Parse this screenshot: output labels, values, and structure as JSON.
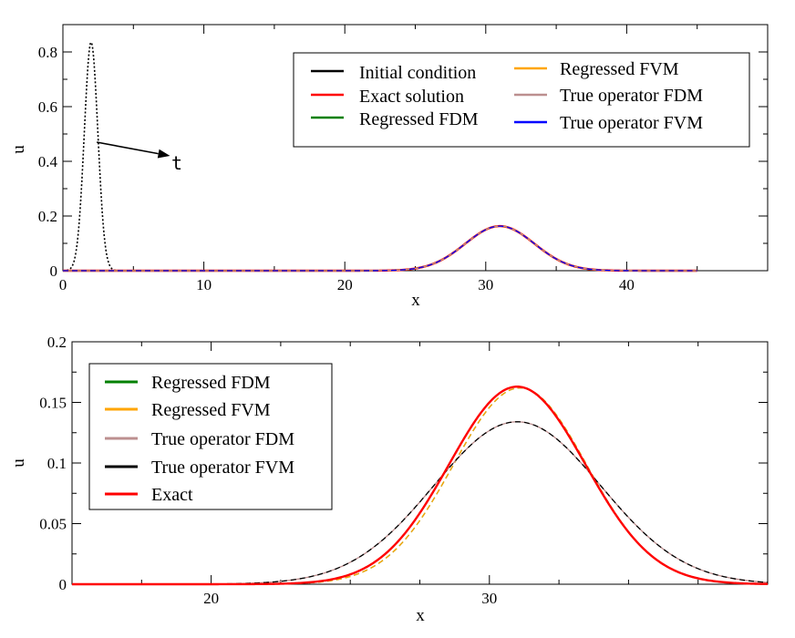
{
  "chart_data": [
    {
      "type": "line",
      "xlabel": "x",
      "ylabel": "u",
      "xlim": [
        0,
        50
      ],
      "ylim": [
        0,
        0.9
      ],
      "xticks": [
        0,
        10,
        20,
        30,
        40
      ],
      "xtick_labels": [
        "0",
        "10",
        "20",
        "30",
        "40"
      ],
      "yticks": [
        0,
        0.2,
        0.4,
        0.6,
        0.8
      ],
      "ytick_labels": [
        "0",
        "0.2",
        "0.4",
        "0.6",
        "0.8"
      ],
      "legend_position": "top-right",
      "legend_columns": [
        [
          "Initial condition",
          "Exact solution",
          "Regressed FDM"
        ],
        [
          "Regressed FVM",
          "True operator FDM",
          "True operator FVM"
        ]
      ],
      "series": [
        {
          "name": "Initial condition",
          "color": "#000000",
          "style": "dotted",
          "shape": "gaussian",
          "center": 2,
          "sigma": 0.48,
          "amplitude": 0.835,
          "x_range": [
            0,
            5
          ]
        },
        {
          "name": "Exact solution",
          "color": "#ff0000",
          "style": "solid",
          "shape": "gaussian",
          "center": 31,
          "sigma": 2.45,
          "amplitude": 0.163,
          "x_range": [
            0,
            45
          ]
        },
        {
          "name": "Regressed FDM",
          "color": "#008000",
          "style": "solid",
          "shape": "gaussian",
          "center": 31,
          "sigma": 2.45,
          "amplitude": 0.163,
          "x_range": [
            0,
            45
          ]
        },
        {
          "name": "Regressed FVM",
          "color": "#ffa500",
          "style": "solid",
          "shape": "gaussian",
          "center": 31,
          "sigma": 2.45,
          "amplitude": 0.163,
          "x_range": [
            0,
            45
          ]
        },
        {
          "name": "True operator FDM",
          "color": "#bc8f8f",
          "style": "solid",
          "shape": "gaussian",
          "center": 31,
          "sigma": 2.45,
          "amplitude": 0.163,
          "x_range": [
            0,
            45
          ]
        },
        {
          "name": "True operator FVM",
          "color": "#0000ff",
          "style": "dashed",
          "shape": "gaussian",
          "center": 31,
          "sigma": 2.45,
          "amplitude": 0.163,
          "x_range": [
            0,
            45
          ]
        }
      ],
      "annotation": {
        "text": "t",
        "arrow_from": [
          2.4,
          0.47
        ],
        "arrow_to": [
          7.6,
          0.42
        ]
      }
    },
    {
      "type": "line",
      "xlabel": "x",
      "ylabel": "u",
      "xlim": [
        15,
        40
      ],
      "ylim": [
        0,
        0.2
      ],
      "xticks": [
        20,
        30
      ],
      "xtick_labels": [
        "20",
        "30"
      ],
      "yticks": [
        0,
        0.05,
        0.1,
        0.15,
        0.2
      ],
      "ytick_labels": [
        "0",
        "0.05",
        "0.1",
        "0.15",
        "0.2"
      ],
      "legend_position": "top-left",
      "legend_entries": [
        "Regressed FDM",
        "Regressed FVM",
        "True operator FDM",
        "True operator FVM",
        "Exact"
      ],
      "series": [
        {
          "name": "Regressed FDM",
          "color": "#008000",
          "style": "dashed",
          "shape": "gaussian",
          "center": 31.1,
          "sigma": 2.4,
          "amplitude": 0.162
        },
        {
          "name": "Regressed FVM",
          "color": "#ffa500",
          "style": "dashed",
          "shape": "gaussian",
          "center": 31.1,
          "sigma": 2.4,
          "amplitude": 0.162
        },
        {
          "name": "True operator FDM",
          "color": "#bc8f8f",
          "style": "solid",
          "shape": "gaussian",
          "center": 31.0,
          "sigma": 3.0,
          "amplitude": 0.134
        },
        {
          "name": "True operator FVM",
          "color": "#000000",
          "style": "dashed",
          "shape": "gaussian",
          "center": 31.0,
          "sigma": 3.0,
          "amplitude": 0.134
        },
        {
          "name": "Exact",
          "color": "#ff0000",
          "style": "solid",
          "shape": "gaussian",
          "center": 31.0,
          "sigma": 2.45,
          "amplitude": 0.163
        }
      ]
    }
  ]
}
